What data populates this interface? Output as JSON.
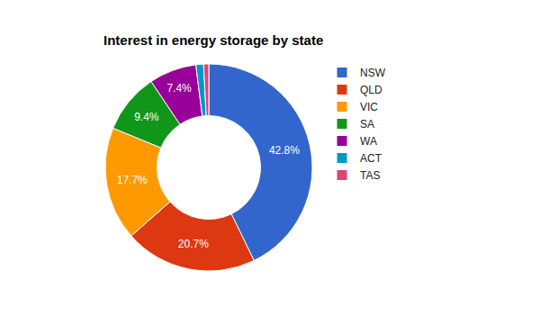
{
  "chart_data": {
    "type": "pie",
    "title": "Interest in energy storage by state",
    "categories": [
      "NSW",
      "QLD",
      "VIC",
      "SA",
      "WA",
      "ACT",
      "TAS"
    ],
    "values": [
      42.8,
      20.7,
      17.7,
      9.4,
      7.4,
      1.2,
      0.8
    ],
    "value_labels": [
      "42.8%",
      "20.7%",
      "17.7%",
      "9.4%",
      "7.4%",
      null,
      null
    ],
    "colors": [
      "#3366cc",
      "#dc3912",
      "#ff9900",
      "#109618",
      "#990099",
      "#0099c6",
      "#dd4477"
    ],
    "data_labels": true,
    "legend": "right"
  }
}
